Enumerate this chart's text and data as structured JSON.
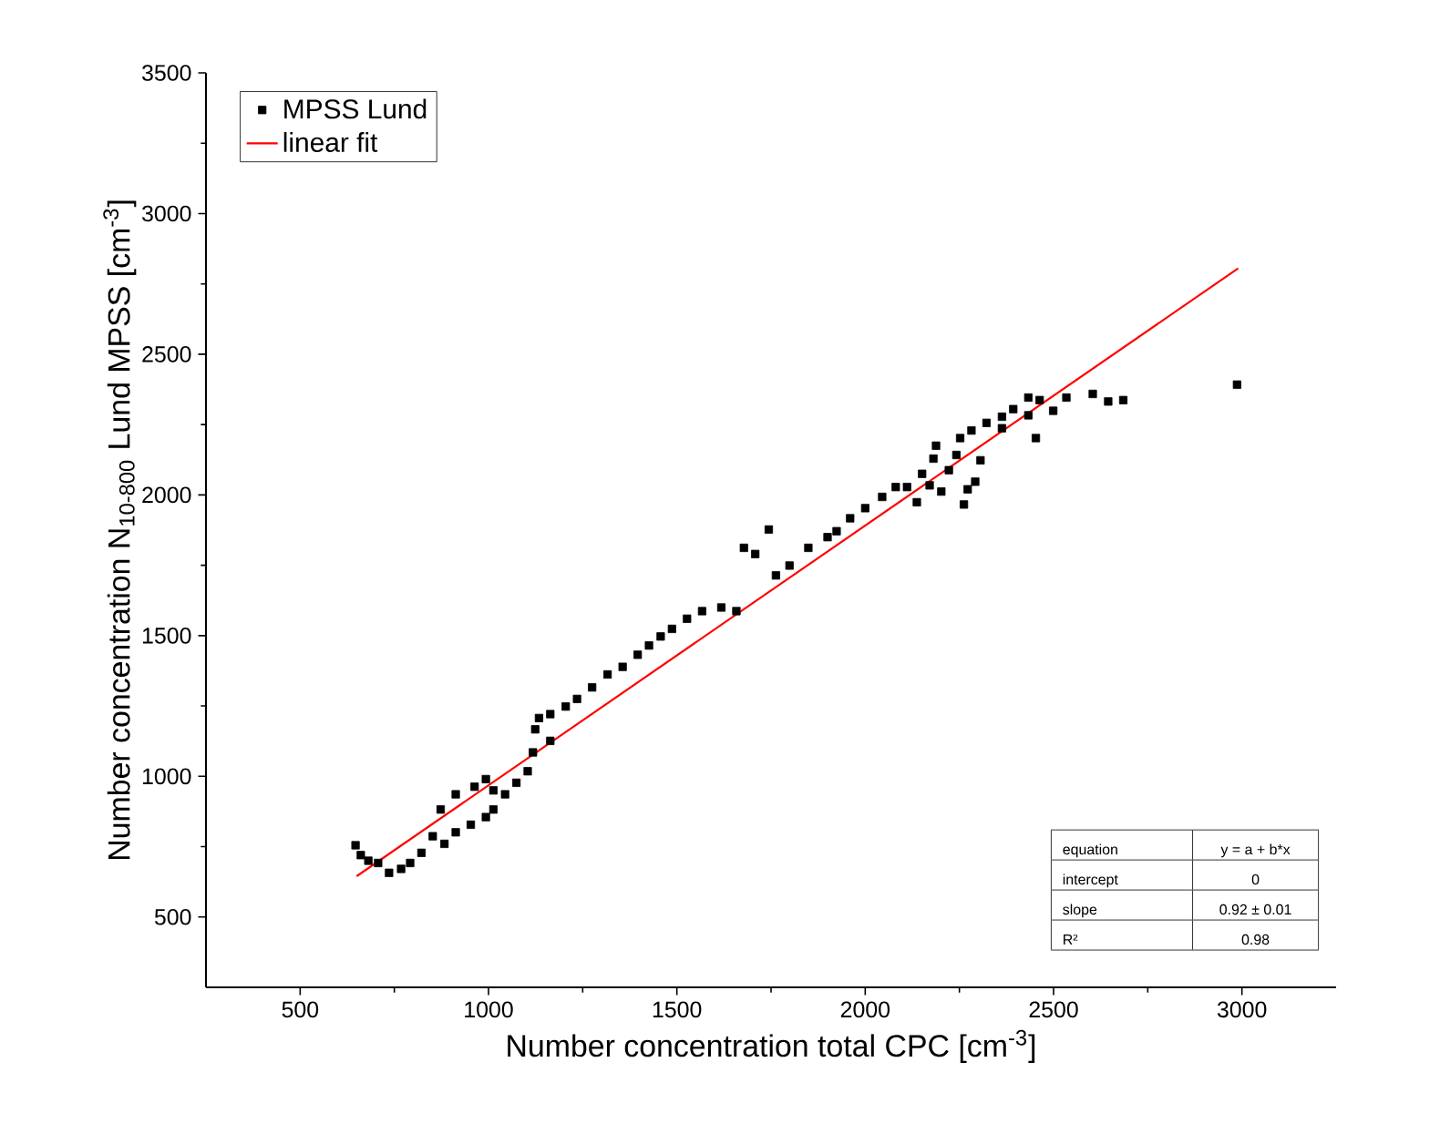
{
  "chart_data": {
    "type": "scatter",
    "xlabel": "Number concentration total CPC [cm$^{-3}$]",
    "ylabel": "Number concentration N$_{10-800}$ Lund MPSS [cm$^{-3}$]",
    "xlim": [
      250,
      3250
    ],
    "ylim": [
      250,
      3500
    ],
    "xticks": [
      500,
      1000,
      1500,
      2000,
      2500,
      3000
    ],
    "yticks": [
      500,
      1000,
      1500,
      2000,
      2500,
      3000,
      3500
    ],
    "grid": false,
    "legend": "top left",
    "annotations": [
      "equation",
      "y = a + b*x",
      "intercept",
      "0",
      "slope",
      "0.92 ± 0.01",
      "R²",
      "0.98"
    ],
    "series": [
      {
        "name": "MPSS Lund",
        "marker": "square",
        "color": "#000000",
        "x": [
          647,
          661,
          681,
          707,
          736,
          768,
          792,
          822,
          852,
          883,
          913,
          953,
          993,
          1013,
          873,
          913,
          963,
          993,
          1013,
          1044,
          1074,
          1104,
          1118,
          1124,
          1134,
          1164,
          1164,
          1205,
          1235,
          1275,
          1316,
          1356,
          1396,
          1426,
          1457,
          1487,
          1527,
          1567,
          1618,
          1658,
          1678,
          1708,
          1744,
          1763,
          1799,
          1849,
          1900,
          1924,
          1960,
          2000,
          2045,
          2081,
          2111,
          2137,
          2151,
          2171,
          2188,
          2181,
          2202,
          2222,
          2242,
          2262,
          2272,
          2292,
          2306,
          2252,
          2282,
          2322,
          2363,
          2363,
          2393,
          2433,
          2433,
          2453,
          2463,
          2499,
          2534,
          2604,
          2645,
          2685,
          2987
        ],
        "values": [
          755,
          720,
          700,
          692,
          657,
          671,
          692,
          728,
          787,
          760,
          801,
          828,
          855,
          882,
          882,
          936,
          963,
          990,
          950,
          936,
          977,
          1018,
          1085,
          1167,
          1207,
          1221,
          1126,
          1248,
          1275,
          1316,
          1362,
          1389,
          1432,
          1465,
          1497,
          1524,
          1560,
          1587,
          1600,
          1587,
          1812,
          1790,
          1877,
          1714,
          1749,
          1812,
          1850,
          1871,
          1917,
          1953,
          1993,
          2028,
          2028,
          1974,
          2075,
          2034,
          2175,
          2129,
          2012,
          2088,
          2142,
          1966,
          2020,
          2047,
          2123,
          2202,
          2229,
          2256,
          2278,
          2237,
          2305,
          2346,
          2283,
          2202,
          2337,
          2299,
          2346,
          2359,
          2332,
          2337,
          2392
        ]
      },
      {
        "name": "linear fit",
        "type": "line",
        "color": "#ff0000",
        "x": [
          650,
          2990
        ],
        "values": [
          645,
          2805
        ]
      }
    ]
  }
}
